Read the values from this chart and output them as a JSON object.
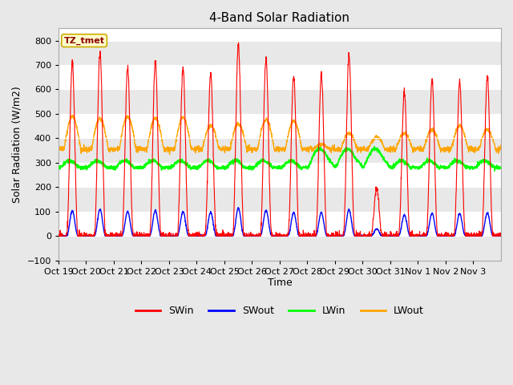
{
  "title": "4-Band Solar Radiation",
  "xlabel": "Time",
  "ylabel": "Solar Radiation (W/m2)",
  "legend_label": "TZ_tmet",
  "series_names": [
    "SWin",
    "SWout",
    "LWin",
    "LWout"
  ],
  "series_colors": [
    "red",
    "blue",
    "lime",
    "orange"
  ],
  "ylim": [
    -100,
    850
  ],
  "yticks": [
    -100,
    0,
    100,
    200,
    300,
    400,
    500,
    600,
    700,
    800
  ],
  "xtick_labels": [
    "Oct 19",
    "Oct 20",
    "Oct 21",
    "Oct 22",
    "Oct 23",
    "Oct 24",
    "Oct 25",
    "Oct 26",
    "Oct 27",
    "Oct 28",
    "Oct 29",
    "Oct 30",
    "Oct 31",
    "Nov 1",
    "Nov 2",
    "Nov 3"
  ],
  "n_days": 16,
  "n_points_per_day": 144,
  "background_color": "#e8e8e8",
  "plot_bg_color": "#ffffff",
  "alt_band_color": "#e8e8e8",
  "title_fontsize": 11,
  "axis_label_fontsize": 9,
  "tick_fontsize": 8,
  "legend_fontsize": 9,
  "peak_heights_SW": [
    710,
    755,
    690,
    714,
    685,
    660,
    785,
    725,
    660,
    660,
    740,
    200,
    590,
    640,
    630,
    650
  ],
  "peak_heights_LW": [
    490,
    480,
    490,
    480,
    485,
    450,
    460,
    475,
    470,
    375,
    420,
    405,
    420,
    435,
    450,
    435
  ],
  "LWin_base": 290,
  "LWout_base": 355
}
